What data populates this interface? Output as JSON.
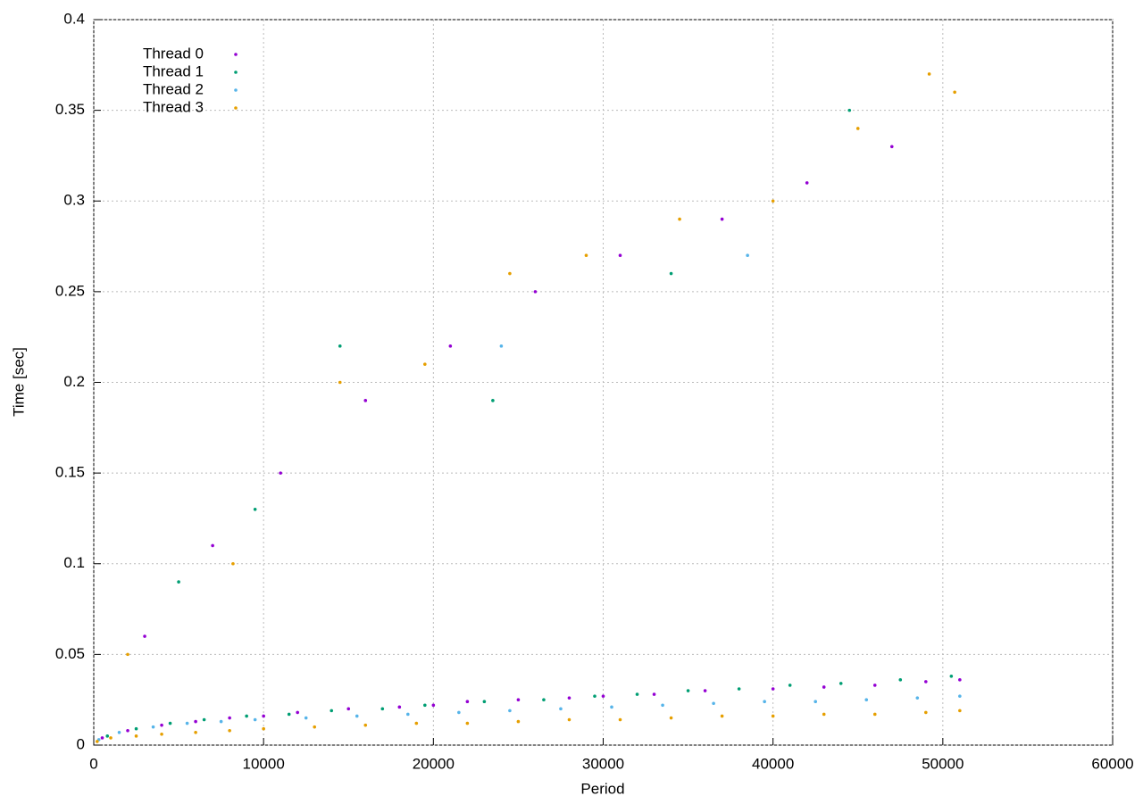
{
  "chart_data": {
    "type": "scatter",
    "x_label": "Period",
    "y_label": "Time [sec]",
    "xlim": [
      0,
      60000
    ],
    "xticks": [
      0,
      10000,
      20000,
      30000,
      40000,
      50000,
      60000
    ],
    "ylim": [
      0,
      0.4
    ],
    "yticks": [
      0,
      0.05,
      0.1,
      0.15,
      0.2,
      0.25,
      0.3,
      0.35,
      0.4
    ],
    "grid": true,
    "legend": "top-left",
    "series": [
      {
        "name": "Thread 0",
        "color": "#9400d3",
        "x": [
          500,
          2000,
          4000,
          6000,
          8000,
          10000,
          12000,
          15000,
          18000,
          20000,
          22000,
          25000,
          28000,
          30000,
          33000,
          36000,
          40000,
          43000,
          46000,
          49000,
          51000,
          3000,
          7000,
          11000,
          16000,
          21000,
          26000,
          31000,
          37000,
          42000,
          47000
        ],
        "values": [
          0.004,
          0.008,
          0.011,
          0.013,
          0.015,
          0.016,
          0.018,
          0.02,
          0.021,
          0.022,
          0.024,
          0.025,
          0.026,
          0.027,
          0.028,
          0.03,
          0.031,
          0.032,
          0.033,
          0.035,
          0.036,
          0.06,
          0.11,
          0.15,
          0.19,
          0.22,
          0.25,
          0.27,
          0.29,
          0.31,
          0.33
        ]
      },
      {
        "name": "Thread 1",
        "color": "#009e73",
        "x": [
          800,
          2500,
          4500,
          6500,
          9000,
          11500,
          14000,
          17000,
          19500,
          23000,
          26500,
          29500,
          32000,
          35000,
          38000,
          41000,
          44000,
          47500,
          50500,
          5000,
          9500,
          14500,
          23500,
          34000,
          44500
        ],
        "values": [
          0.005,
          0.009,
          0.012,
          0.014,
          0.016,
          0.017,
          0.019,
          0.02,
          0.022,
          0.024,
          0.025,
          0.027,
          0.028,
          0.03,
          0.031,
          0.033,
          0.034,
          0.036,
          0.038,
          0.09,
          0.13,
          0.22,
          0.19,
          0.26,
          0.35
        ]
      },
      {
        "name": "Thread 2",
        "color": "#56b4e9",
        "x": [
          300,
          1500,
          3500,
          5500,
          7500,
          9500,
          12500,
          15500,
          18500,
          21500,
          24500,
          27500,
          30500,
          33500,
          36500,
          39500,
          42500,
          45500,
          48500,
          51000,
          24000,
          38500
        ],
        "values": [
          0.003,
          0.007,
          0.01,
          0.012,
          0.013,
          0.014,
          0.015,
          0.016,
          0.017,
          0.018,
          0.019,
          0.02,
          0.021,
          0.022,
          0.023,
          0.024,
          0.024,
          0.025,
          0.026,
          0.027,
          0.22,
          0.27
        ]
      },
      {
        "name": "Thread 3",
        "color": "#e69f00",
        "x": [
          200,
          1000,
          2500,
          4000,
          6000,
          8000,
          10000,
          13000,
          16000,
          19000,
          22000,
          25000,
          28000,
          31000,
          34000,
          37000,
          40000,
          43000,
          46000,
          49000,
          51000,
          2000,
          8200,
          14500,
          19500,
          24500,
          29000,
          34500,
          40000,
          45000,
          50700,
          49200
        ],
        "values": [
          0.002,
          0.004,
          0.005,
          0.006,
          0.007,
          0.008,
          0.009,
          0.01,
          0.011,
          0.012,
          0.012,
          0.013,
          0.014,
          0.014,
          0.015,
          0.016,
          0.016,
          0.017,
          0.017,
          0.018,
          0.019,
          0.05,
          0.1,
          0.2,
          0.21,
          0.26,
          0.27,
          0.29,
          0.3,
          0.34,
          0.36,
          0.37
        ]
      }
    ]
  }
}
